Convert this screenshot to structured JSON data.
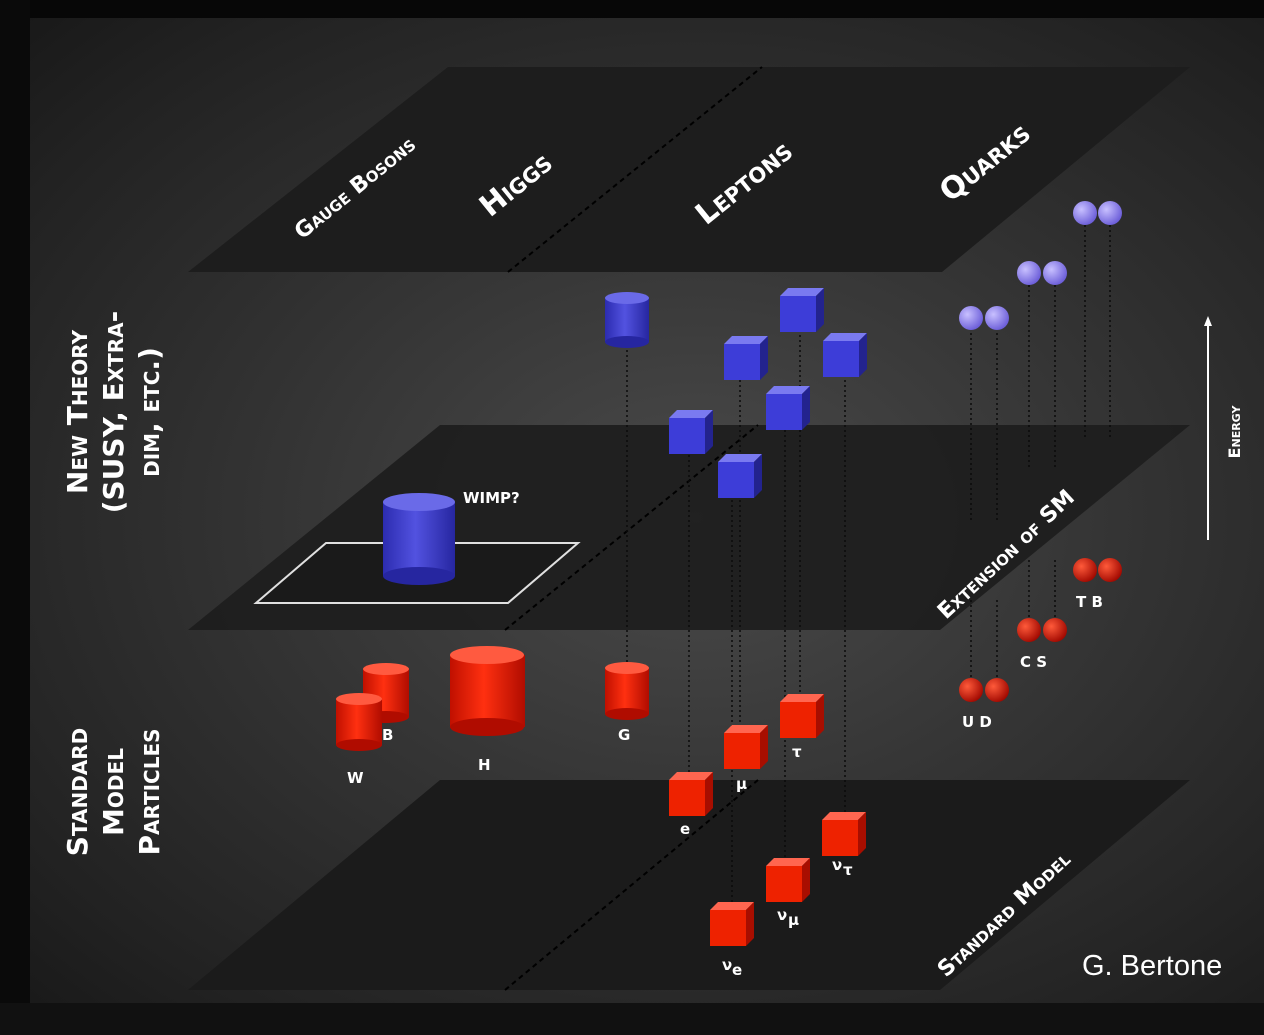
{
  "plane_labels": {
    "gauge_bosons": "Gauge Bosons",
    "higgs": "Higgs",
    "leptons": "Leptons",
    "quarks": "Quarks",
    "extension": "Extension of SM",
    "standard_model": "Standard Model"
  },
  "side_labels": {
    "new_theory": [
      "New Theory",
      "(SUSY, Extra-",
      "dim, etc.)"
    ],
    "standard_model_particles": [
      "Standard",
      "Model",
      "Particles"
    ],
    "energy": "Energy"
  },
  "wimp_label": "WIMP?",
  "particles": {
    "w": "W",
    "b": "B",
    "h": "H",
    "g": "G",
    "e": "e",
    "mu": "μ",
    "tau": "τ",
    "nu_e": "ν",
    "nu_e_sub": "e",
    "nu_mu": "ν",
    "nu_mu_sub": "μ",
    "nu_tau": "ν",
    "nu_tau_sub": "τ",
    "ud": "U D",
    "cs": "C S",
    "tb": "T B"
  },
  "credit": "G. Bertone",
  "colors": {
    "sm_particle": "#ee2200",
    "new_particle": "#3d3dcc",
    "quark_sm": "#cc1100",
    "quark_new": "#8877ee",
    "plane": "#1e1e1e"
  }
}
